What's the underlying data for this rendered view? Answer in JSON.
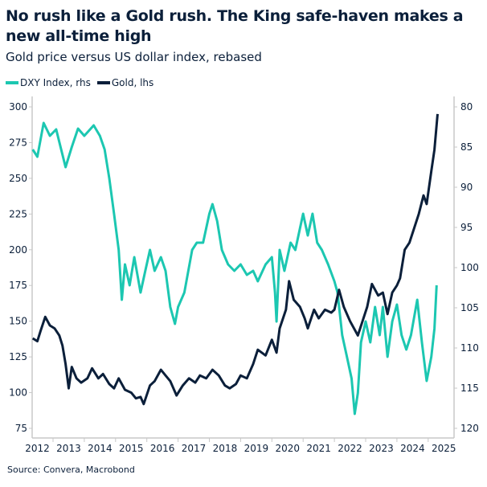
{
  "title": "No rush like a Gold rush. The King safe-haven makes a new all-time high",
  "subtitle": "Gold price versus US dollar index, rebased",
  "source": "Source: Convera, Macrobond",
  "chart_data": {
    "type": "line",
    "title": "No rush like a Gold rush. The King safe-haven makes a new all-time high",
    "subtitle": "Gold price versus US dollar index, rebased",
    "x_ticks": [
      "2012",
      "2013",
      "2014",
      "2015",
      "2016",
      "2017",
      "2018",
      "2019",
      "2020",
      "2021",
      "2022",
      "2023",
      "2024",
      "2025"
    ],
    "y_left": {
      "ticks": [
        300,
        275,
        250,
        225,
        200,
        175,
        150,
        125,
        100,
        75
      ],
      "range": [
        75,
        300
      ]
    },
    "y_right": {
      "ticks": [
        80,
        85,
        90,
        95,
        100,
        105,
        110,
        115,
        120
      ],
      "range": [
        80,
        120
      ],
      "inverted": true
    },
    "grid": false,
    "legend_position": "top-left",
    "series": [
      {
        "name": "DXY Index, rhs",
        "axis": "right",
        "color": "#1cc7b1",
        "x": [
          2012.35,
          2012.5,
          2012.7,
          2012.9,
          2013.1,
          2013.4,
          2013.6,
          2013.8,
          2014.0,
          2014.3,
          2014.5,
          2014.65,
          2014.8,
          2014.95,
          2015.1,
          2015.2,
          2015.3,
          2015.45,
          2015.6,
          2015.8,
          2015.95,
          2016.1,
          2016.25,
          2016.45,
          2016.6,
          2016.75,
          2016.9,
          2017.0,
          2017.2,
          2017.45,
          2017.6,
          2017.8,
          2018.0,
          2018.1,
          2018.25,
          2018.4,
          2018.6,
          2018.8,
          2019.0,
          2019.2,
          2019.4,
          2019.55,
          2019.8,
          2020.0,
          2020.1,
          2020.15,
          2020.25,
          2020.4,
          2020.6,
          2020.75,
          2020.9,
          2021.0,
          2021.15,
          2021.3,
          2021.45,
          2021.6,
          2021.8,
          2022.0,
          2022.1,
          2022.25,
          2022.4,
          2022.55,
          2022.65,
          2022.75,
          2022.85,
          2023.0,
          2023.15,
          2023.3,
          2023.45,
          2023.55,
          2023.7,
          2023.85,
          2024.0,
          2024.15,
          2024.3,
          2024.45,
          2024.65,
          2024.8,
          2024.95,
          2025.1,
          2025.2,
          2025.27
        ],
        "y": [
          85.3,
          86.2,
          82.0,
          83.6,
          82.8,
          87.5,
          85.0,
          82.7,
          83.6,
          82.3,
          83.6,
          85.3,
          88.9,
          93.3,
          97.8,
          104.0,
          99.6,
          102.2,
          98.7,
          103.1,
          100.4,
          97.8,
          100.4,
          98.7,
          100.4,
          104.9,
          107.0,
          104.9,
          103.1,
          97.8,
          96.9,
          96.9,
          93.3,
          92.1,
          94.2,
          97.8,
          99.6,
          100.4,
          99.6,
          100.9,
          100.4,
          101.7,
          99.6,
          98.7,
          103.1,
          106.7,
          97.8,
          100.4,
          96.9,
          97.8,
          95.1,
          93.3,
          96.0,
          93.3,
          96.9,
          97.8,
          99.6,
          101.7,
          103.1,
          108.4,
          111.1,
          113.8,
          118.2,
          115.6,
          109.3,
          106.7,
          109.3,
          104.9,
          108.4,
          104.9,
          111.1,
          106.7,
          104.6,
          108.4,
          110.2,
          108.4,
          104.0,
          109.3,
          114.1,
          111.1,
          107.6,
          102.2
        ]
      },
      {
        "name": "Gold, lhs",
        "axis": "left",
        "color": "#0b1f3a",
        "x": [
          2012.35,
          2012.5,
          2012.6,
          2012.75,
          2012.9,
          2013.05,
          2013.2,
          2013.3,
          2013.4,
          2013.5,
          2013.6,
          2013.75,
          2013.9,
          2014.1,
          2014.25,
          2014.45,
          2014.6,
          2014.8,
          2014.95,
          2015.1,
          2015.3,
          2015.5,
          2015.65,
          2015.8,
          2015.9,
          2016.1,
          2016.25,
          2016.45,
          2016.6,
          2016.75,
          2016.95,
          2017.15,
          2017.35,
          2017.55,
          2017.7,
          2017.9,
          2018.1,
          2018.3,
          2018.5,
          2018.65,
          2018.85,
          2019.0,
          2019.2,
          2019.4,
          2019.55,
          2019.8,
          2020.0,
          2020.15,
          2020.25,
          2020.45,
          2020.55,
          2020.7,
          2020.9,
          2021.05,
          2021.15,
          2021.35,
          2021.5,
          2021.7,
          2021.9,
          2022.0,
          2022.15,
          2022.3,
          2022.5,
          2022.75,
          2022.9,
          2023.05,
          2023.2,
          2023.4,
          2023.55,
          2023.7,
          2023.85,
          2024.0,
          2024.1,
          2024.25,
          2024.4,
          2024.55,
          2024.7,
          2024.85,
          2024.95,
          2025.1,
          2025.2,
          2025.3
        ],
        "y": [
          138,
          136,
          143,
          153,
          147,
          145,
          140,
          133,
          120,
          103,
          118,
          110,
          107,
          110,
          117,
          110,
          113,
          106,
          103,
          110,
          102,
          100,
          96,
          97,
          92,
          105,
          108,
          116,
          112,
          108,
          98,
          105,
          110,
          107,
          112,
          110,
          116,
          112,
          105,
          103,
          106,
          112,
          110,
          120,
          130,
          126,
          137,
          128,
          145,
          158,
          178,
          165,
          160,
          152,
          145,
          158,
          152,
          158,
          156,
          158,
          172,
          160,
          150,
          140,
          150,
          160,
          176,
          168,
          170,
          155,
          170,
          175,
          180,
          200,
          205,
          215,
          225,
          238,
          232,
          255,
          270,
          295
        ]
      }
    ]
  }
}
